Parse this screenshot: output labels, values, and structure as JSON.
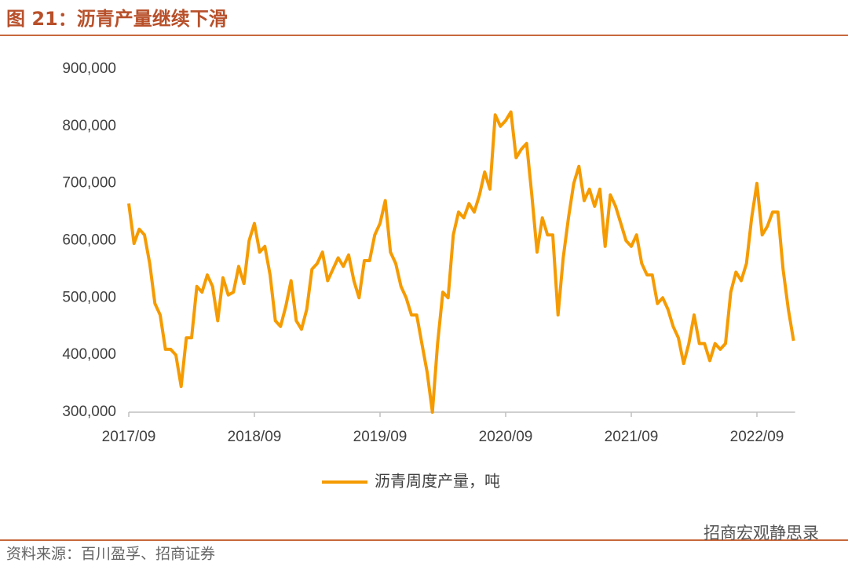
{
  "chart_data": {
    "type": "line",
    "title": "图 21：沥青产量继续下滑",
    "source": "资料来源：百川盈孚、招商证券",
    "watermark": "招商宏观静思录",
    "categories": [
      "2017/09",
      null,
      null,
      null,
      null,
      null,
      null,
      null,
      null,
      null,
      null,
      null,
      null,
      null,
      null,
      null,
      null,
      null,
      null,
      null,
      null,
      null,
      null,
      null,
      "2018/09",
      null,
      null,
      null,
      null,
      null,
      null,
      null,
      null,
      null,
      null,
      null,
      null,
      null,
      null,
      null,
      null,
      null,
      null,
      null,
      null,
      null,
      null,
      null,
      "2019/09",
      null,
      null,
      null,
      null,
      null,
      null,
      null,
      null,
      null,
      null,
      null,
      null,
      null,
      null,
      null,
      null,
      null,
      null,
      null,
      null,
      null,
      null,
      null,
      "2020/09",
      null,
      null,
      null,
      null,
      null,
      null,
      null,
      null,
      null,
      null,
      null,
      null,
      null,
      null,
      null,
      null,
      null,
      null,
      null,
      null,
      null,
      null,
      null,
      "2021/09",
      null,
      null,
      null,
      null,
      null,
      null,
      null,
      null,
      null,
      null,
      null,
      null,
      null,
      null,
      null,
      null,
      null,
      null,
      null,
      null,
      null,
      null,
      null,
      "2022/09",
      null,
      null,
      null,
      null,
      null,
      null,
      null
    ],
    "series": [
      {
        "name": "沥青周度产量，吨",
        "color": "#f59b00",
        "values": [
          665000,
          595000,
          620000,
          610000,
          560000,
          490000,
          470000,
          410000,
          410000,
          400000,
          345000,
          430000,
          430000,
          520000,
          510000,
          540000,
          520000,
          460000,
          535000,
          505000,
          510000,
          555000,
          525000,
          600000,
          630000,
          580000,
          590000,
          540000,
          460000,
          450000,
          485000,
          530000,
          460000,
          445000,
          480000,
          550000,
          560000,
          580000,
          530000,
          550000,
          570000,
          555000,
          575000,
          530000,
          500000,
          565000,
          565000,
          610000,
          630000,
          670000,
          580000,
          560000,
          520000,
          500000,
          470000,
          470000,
          420000,
          370000,
          300000,
          420000,
          510000,
          500000,
          610000,
          650000,
          640000,
          665000,
          650000,
          680000,
          720000,
          690000,
          820000,
          800000,
          810000,
          825000,
          745000,
          760000,
          770000,
          680000,
          580000,
          640000,
          610000,
          610000,
          470000,
          570000,
          640000,
          700000,
          730000,
          670000,
          690000,
          660000,
          690000,
          590000,
          680000,
          660000,
          630000,
          600000,
          590000,
          610000,
          560000,
          540000,
          540000,
          490000,
          500000,
          480000,
          450000,
          430000,
          385000,
          420000,
          470000,
          420000,
          420000,
          390000,
          420000,
          410000,
          420000,
          510000,
          545000,
          530000,
          560000,
          640000,
          700000,
          610000,
          625000,
          650000,
          650000,
          550000,
          480000,
          425000
        ]
      }
    ],
    "ylim": [
      300000,
      900000
    ],
    "yticks": [
      {
        "value": 300000,
        "label": "300,000"
      },
      {
        "value": 400000,
        "label": "400,000"
      },
      {
        "value": 500000,
        "label": "500,000"
      },
      {
        "value": 600000,
        "label": "600,000"
      },
      {
        "value": 700000,
        "label": "700,000"
      },
      {
        "value": 800000,
        "label": "800,000"
      },
      {
        "value": 900000,
        "label": "900,000"
      }
    ],
    "grid": false
  }
}
